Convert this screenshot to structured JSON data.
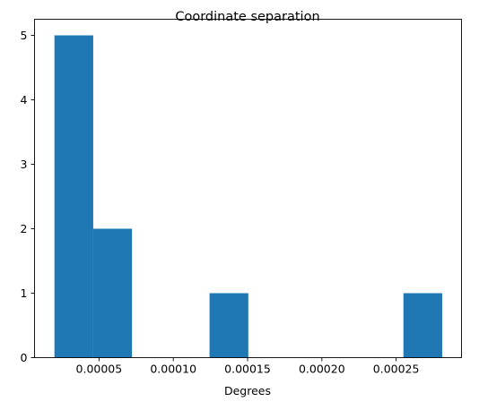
{
  "chart_data": {
    "type": "bar",
    "title": "Coordinate separation",
    "xlabel": "Degrees",
    "ylabel": "",
    "xlim": [
      6.6e-06,
      0.000294
    ],
    "ylim": [
      0,
      5.25
    ],
    "bins": [
      {
        "x0": 2e-05,
        "x1": 4.61e-05,
        "count": 5
      },
      {
        "x0": 4.61e-05,
        "x1": 7.22e-05,
        "count": 2
      },
      {
        "x0": 7.22e-05,
        "x1": 9.83e-05,
        "count": 0
      },
      {
        "x0": 9.83e-05,
        "x1": 0.0001244,
        "count": 0
      },
      {
        "x0": 0.0001244,
        "x1": 0.0001505,
        "count": 1
      },
      {
        "x0": 0.0001505,
        "x1": 0.0001766,
        "count": 0
      },
      {
        "x0": 0.0001766,
        "x1": 0.0002027,
        "count": 0
      },
      {
        "x0": 0.0002027,
        "x1": 0.0002288,
        "count": 0
      },
      {
        "x0": 0.0002288,
        "x1": 0.0002549,
        "count": 0
      },
      {
        "x0": 0.0002549,
        "x1": 0.000281,
        "count": 1
      }
    ],
    "x_ticks": [
      {
        "value": 5e-05,
        "label": "0.00005"
      },
      {
        "value": 0.0001,
        "label": "0.00010"
      },
      {
        "value": 0.00015,
        "label": "0.00015"
      },
      {
        "value": 0.0002,
        "label": "0.00020"
      },
      {
        "value": 0.00025,
        "label": "0.00025"
      }
    ],
    "y_ticks": [
      {
        "value": 0,
        "label": "0"
      },
      {
        "value": 1,
        "label": "1"
      },
      {
        "value": 2,
        "label": "2"
      },
      {
        "value": 3,
        "label": "3"
      },
      {
        "value": 4,
        "label": "4"
      },
      {
        "value": 5,
        "label": "5"
      }
    ],
    "grid": false,
    "colors": {
      "bar": "#1f77b4",
      "axis": "#000000",
      "background": "#ffffff"
    }
  }
}
